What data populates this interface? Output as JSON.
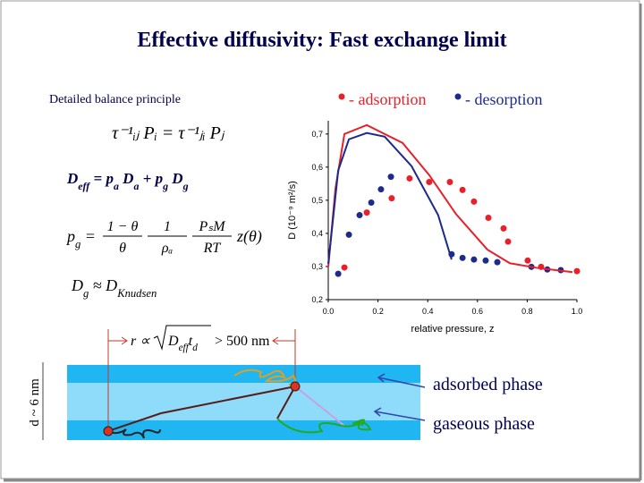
{
  "title": "Effective diffusivity: Fast exchange limit",
  "principle": "Detailed balance principle",
  "eq_balance": "τ⁻¹ᵢⱼ Pᵢ = τ⁻¹ⱼᵢ Pⱼ",
  "eq_deff": [
    {
      "text": "D"
    },
    {
      "text": "eff",
      "pos": "sub"
    },
    {
      "text": " = p"
    },
    {
      "text": "a",
      "pos": "sub"
    },
    {
      "text": " D"
    },
    {
      "text": "a",
      "pos": "sub"
    },
    {
      "text": "  +  p"
    },
    {
      "text": "g",
      "pos": "sub"
    },
    {
      "text": " D"
    },
    {
      "text": "g",
      "pos": "sub"
    }
  ],
  "eq_pg": {
    "lhs": [
      {
        "text": "p"
      },
      {
        "text": "g",
        "pos": "sub"
      },
      {
        "text": " ="
      }
    ],
    "fractions": [
      [
        "1 − θ",
        "θ"
      ],
      [
        "1",
        "ρₐ"
      ],
      [
        "PₛM",
        "RT"
      ]
    ],
    "tail": "z(θ)"
  },
  "eq_dg": [
    {
      "text": "D"
    },
    {
      "text": "g",
      "pos": "sub"
    },
    {
      "text": " ≈ D"
    },
    {
      "text": "Knudsen",
      "pos": "sub"
    }
  ],
  "eq_r": {
    "lhs": "r ∝",
    "root": [
      {
        "text": "D"
      },
      {
        "text": "eff",
        "pos": "sub"
      },
      {
        "text": "t"
      },
      {
        "text": "d",
        "pos": "sub"
      }
    ],
    "rhs": "> 500 nm"
  },
  "channel": {
    "width_label": "d ~ 6 nm",
    "labels": [
      "adsorbed phase",
      "gaseous phase"
    ]
  },
  "chart_data": {
    "type": "scatter",
    "x_label": "relative pressure, z",
    "y_label": "D (10⁻⁹ m²/s)",
    "xlim": [
      0,
      1
    ],
    "ylim": [
      0.2,
      0.74
    ],
    "xticks": [
      {
        "value": 0,
        "label": "0.0"
      },
      {
        "value": 0.2,
        "label": "0.2"
      },
      {
        "value": 0.4,
        "label": "0.4"
      },
      {
        "value": 0.6,
        "label": "0.6"
      },
      {
        "value": 0.8,
        "label": "0.8"
      },
      {
        "value": 1,
        "label": "1.0"
      }
    ],
    "yticks": [
      {
        "value": 0.2,
        "label": "0,2"
      },
      {
        "value": 0.3,
        "label": "0,3"
      },
      {
        "value": 0.4,
        "label": "0,4"
      },
      {
        "value": 0.5,
        "label": "0,5"
      },
      {
        "value": 0.6,
        "label": "0,6"
      },
      {
        "value": 0.7,
        "label": "0,7"
      }
    ],
    "series": [
      {
        "name": "- adsorption",
        "color": "#e8202a",
        "mode": "points",
        "x": [
          0.065,
          0.155,
          0.255,
          0.327,
          0.406,
          0.489,
          0.54,
          0.586,
          0.644,
          0.705,
          0.723,
          0.802,
          0.856,
          1.0
        ],
        "values": [
          0.297,
          0.463,
          0.506,
          0.566,
          0.555,
          0.555,
          0.531,
          0.496,
          0.447,
          0.415,
          0.375,
          0.318,
          0.299,
          0.286
        ]
      },
      {
        "name": "- desorption",
        "color": "#1c2a8c",
        "mode": "points",
        "x": [
          0.04,
          0.083,
          0.126,
          0.173,
          0.212,
          0.252,
          0.496,
          0.54,
          0.586,
          0.633,
          0.68,
          0.817,
          0.881,
          0.935
        ],
        "values": [
          0.278,
          0.396,
          0.455,
          0.493,
          0.533,
          0.571,
          0.337,
          0.326,
          0.321,
          0.318,
          0.313,
          0.299,
          0.291,
          0.289
        ]
      },
      {
        "color": "#e8202a",
        "mode": "line",
        "x": [
          0,
          0.029,
          0.065,
          0.155,
          0.299,
          0.406,
          0.514,
          0.64,
          0.73,
          0.838,
          0.982
        ],
        "values": [
          0.299,
          0.536,
          0.7,
          0.727,
          0.673,
          0.576,
          0.458,
          0.351,
          0.31,
          0.296,
          0.283
        ]
      },
      {
        "color": "#1c2a8c",
        "mode": "line",
        "x": [
          0,
          0.04,
          0.083,
          0.155,
          0.227,
          0.335,
          0.442,
          0.496
        ],
        "values": [
          0.308,
          0.59,
          0.684,
          0.703,
          0.692,
          0.603,
          0.455,
          0.321
        ]
      }
    ]
  }
}
